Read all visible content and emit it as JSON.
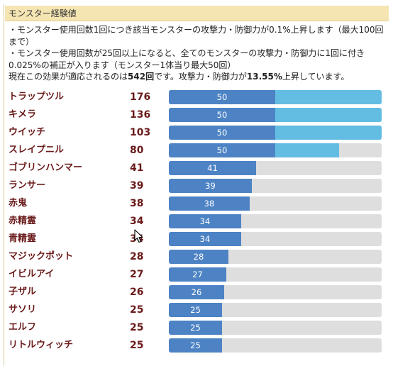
{
  "panel": {
    "title": "モンスター経験値"
  },
  "description": {
    "line1": "・モンスター使用回数1回につき該当モンスターの攻撃力・防御力が0.1%上昇します（最大100回まで）",
    "line2": "・モンスター使用回数が25回以上になると、全てのモンスターの攻撃力・防御力に1回に付き0.025%の補正が入ります（モンスター1体当り最大50回）",
    "line3_prefix": "現在この効果が適応されるのは",
    "applied_count": "542回",
    "line3_mid": "です。攻撃力・防御力が",
    "percent": "13.55%",
    "line3_suffix": "上昇しています。"
  },
  "colors": {
    "header_bg": "#f5e5b3",
    "bar_primary": "#4d83c4",
    "bar_bonus": "#63bde3",
    "bar_track": "#dedede",
    "name_text": "#6a1a1a"
  },
  "monsters": [
    {
      "name": "トラップツル",
      "count": "176",
      "bar_value": "50",
      "bar_fraction": 0.5,
      "bonus_fraction": 0.5
    },
    {
      "name": "キメラ",
      "count": "136",
      "bar_value": "50",
      "bar_fraction": 0.5,
      "bonus_fraction": 0.5
    },
    {
      "name": "ウイッチ",
      "count": "103",
      "bar_value": "50",
      "bar_fraction": 0.5,
      "bonus_fraction": 0.5
    },
    {
      "name": "スレイプニル",
      "count": "80",
      "bar_value": "50",
      "bar_fraction": 0.5,
      "bonus_fraction": 0.3
    },
    {
      "name": "ゴブリンハンマー",
      "count": "41",
      "bar_value": "41",
      "bar_fraction": 0.41,
      "bonus_fraction": 0
    },
    {
      "name": "ランサー",
      "count": "39",
      "bar_value": "39",
      "bar_fraction": 0.39,
      "bonus_fraction": 0
    },
    {
      "name": "赤鬼",
      "count": "38",
      "bar_value": "38",
      "bar_fraction": 0.38,
      "bonus_fraction": 0
    },
    {
      "name": "赤精霊",
      "count": "34",
      "bar_value": "34",
      "bar_fraction": 0.34,
      "bonus_fraction": 0
    },
    {
      "name": "青精霊",
      "count": "34",
      "bar_value": "34",
      "bar_fraction": 0.34,
      "bonus_fraction": 0
    },
    {
      "name": "マジックポット",
      "count": "28",
      "bar_value": "28",
      "bar_fraction": 0.28,
      "bonus_fraction": 0
    },
    {
      "name": "イビルアイ",
      "count": "27",
      "bar_value": "27",
      "bar_fraction": 0.27,
      "bonus_fraction": 0
    },
    {
      "name": "子ザル",
      "count": "26",
      "bar_value": "26",
      "bar_fraction": 0.26,
      "bonus_fraction": 0
    },
    {
      "name": "サソリ",
      "count": "25",
      "bar_value": "25",
      "bar_fraction": 0.25,
      "bonus_fraction": 0
    },
    {
      "name": "エルフ",
      "count": "25",
      "bar_value": "25",
      "bar_fraction": 0.25,
      "bonus_fraction": 0
    },
    {
      "name": "リトルウィッチ",
      "count": "25",
      "bar_value": "25",
      "bar_fraction": 0.25,
      "bonus_fraction": 0
    }
  ]
}
